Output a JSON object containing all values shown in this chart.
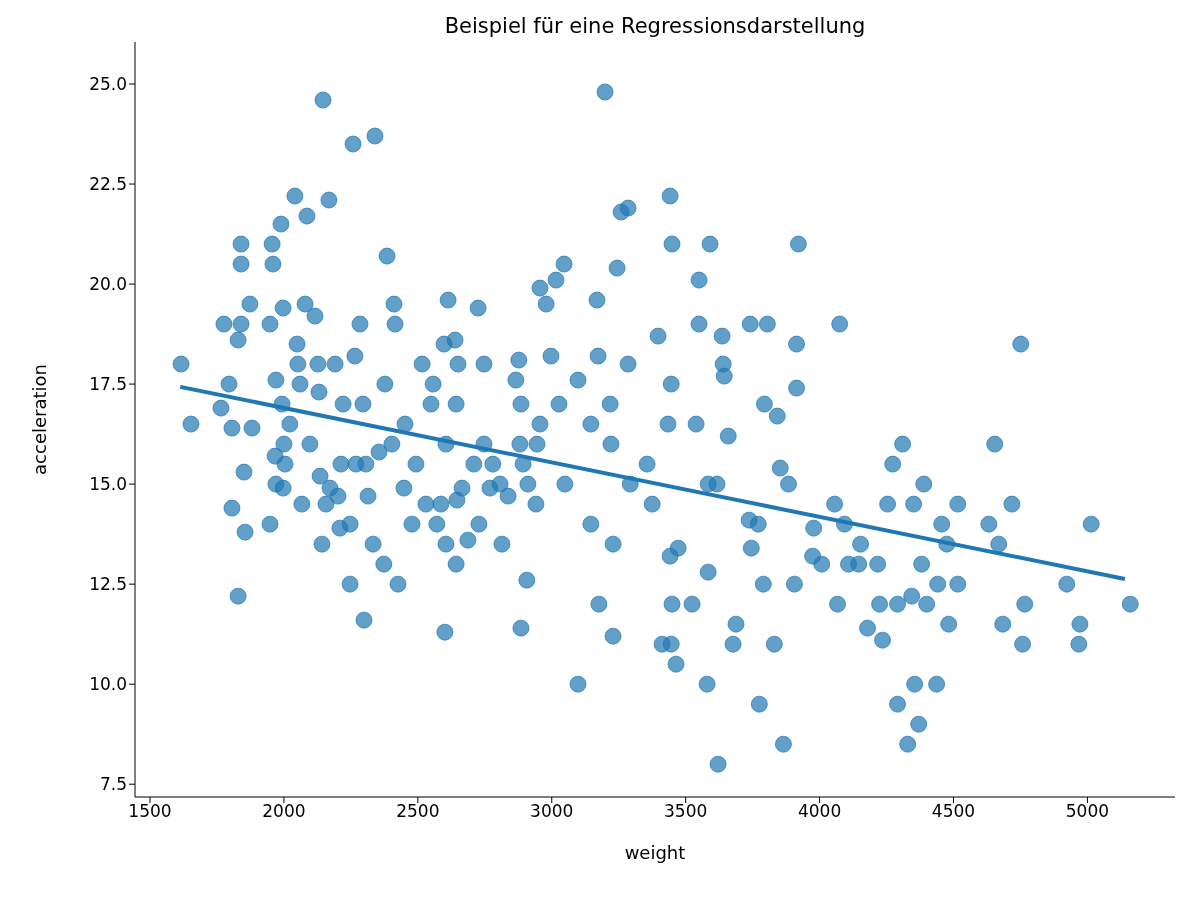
{
  "chart_data": {
    "type": "scatter",
    "title": "Beispiel für eine Regressionsdarstellung",
    "xlabel": "weight",
    "ylabel": "acceleration",
    "xlim": [
      1444,
      5327
    ],
    "ylim": [
      7.18,
      26.05
    ],
    "xticks": [
      1500,
      2000,
      2500,
      3000,
      3500,
      4000,
      4500,
      5000
    ],
    "yticks": [
      {
        "value": 7.5,
        "label": "7.5"
      },
      {
        "value": 10,
        "label": "10.0"
      },
      {
        "value": 12.5,
        "label": "12.5"
      },
      {
        "value": 15,
        "label": "15.0"
      },
      {
        "value": 17.5,
        "label": "17.5"
      },
      {
        "value": 20,
        "label": "20.0"
      },
      {
        "value": 22.5,
        "label": "22.5"
      },
      {
        "value": 25,
        "label": "25.0"
      }
    ],
    "grid": false,
    "marker": "circle",
    "series": [
      {
        "color": "#1f77b4",
        "x": [
          1616,
          1653,
          1776,
          1765,
          1795,
          1806,
          1806,
          1829,
          1840,
          1840,
          1840,
          1829,
          1851,
          1855,
          1873,
          1881,
          1956,
          1959,
          1948,
          1970,
          1967,
          1948,
          1989,
          1997,
          1993,
          2000,
          1997,
          2041,
          2049,
          2052,
          2067,
          2086,
          2079,
          2116,
          2127,
          2131,
          2146,
          2135,
          2142,
          2168,
          2191,
          2221,
          2213,
          2209,
          2247,
          2258,
          2265,
          2284,
          2295,
          2299,
          2340,
          2333,
          2385,
          2377,
          2411,
          2415,
          2403,
          2426,
          2373,
          2452,
          2478,
          2516,
          2549,
          2557,
          2598,
          2613,
          2605,
          2601,
          2605,
          2639,
          2650,
          2643,
          2665,
          2643,
          2725,
          2747,
          2747,
          2728,
          2769,
          2807,
          2814,
          2866,
          2877,
          2885,
          2881,
          2911,
          2907,
          2885,
          2956,
          2979,
          2956,
          2941,
          3016,
          3046,
          2997,
          3027,
          3049,
          3098,
          3098,
          3146,
          3169,
          3173,
          3199,
          3176,
          3146,
          3218,
          3221,
          3229,
          3244,
          3259,
          3285,
          3285,
          3293,
          3229,
          3356,
          3375,
          3397,
          3442,
          3449,
          3446,
          3434,
          3449,
          3446,
          3464,
          3472,
          3412,
          3442,
          3524,
          3539,
          3550,
          3550,
          3584,
          3591,
          3584,
          3580,
          3621,
          3617,
          3636,
          3640,
          3644,
          3659,
          3677,
          3688,
          3741,
          3737,
          3745,
          3771,
          3775,
          3790,
          3794,
          3805,
          3831,
          3842,
          3853,
          3865,
          3884,
          3906,
          3914,
          3914,
          3921,
          3974,
          3978,
          4008,
          4075,
          4067,
          4056,
          4093,
          4108,
          4146,
          4153,
          4179,
          4217,
          4224,
          4235,
          4254,
          4273,
          4291,
          4291,
          4310,
          4329,
          4344,
          4351,
          4355,
          4370,
          4381,
          4389,
          4400,
          4437,
          4441,
          4456,
          4475,
          4482,
          4516,
          4516,
          4632,
          4654,
          4669,
          4684,
          4718,
          4751,
          4758,
          4766,
          4923,
          4972,
          4968,
          5014,
          5160,
          2172,
          2157,
          2202,
          2247,
          2269,
          2306,
          2314,
          2355,
          2448,
          2493,
          2530,
          2571,
          2586,
          2646,
          2687,
          2709,
          2780,
          2837,
          2893,
          2945,
          2004,
          1970,
          2060,
          2022,
          2097
        ],
        "values": [
          18.0,
          16.5,
          19.0,
          16.9,
          17.5,
          16.4,
          14.4,
          12.2,
          21.0,
          20.5,
          19.0,
          18.6,
          15.3,
          13.8,
          19.5,
          16.4,
          21.0,
          20.5,
          19.0,
          17.6,
          15.7,
          14.0,
          21.5,
          19.4,
          17.0,
          16.0,
          14.9,
          22.2,
          18.5,
          18.0,
          14.5,
          21.7,
          19.5,
          19.2,
          18.0,
          17.3,
          24.6,
          15.2,
          13.5,
          22.1,
          18.0,
          17.0,
          15.5,
          13.9,
          12.5,
          23.5,
          18.2,
          19.0,
          17.0,
          11.6,
          23.7,
          13.5,
          20.7,
          17.5,
          19.5,
          19.0,
          16.0,
          12.5,
          13.0,
          16.5,
          14.0,
          18.0,
          17.0,
          17.5,
          18.5,
          19.6,
          16.0,
          11.3,
          13.5,
          18.6,
          18.0,
          17.0,
          14.9,
          13.0,
          19.4,
          18.0,
          16.0,
          14.0,
          14.9,
          15.0,
          13.5,
          17.6,
          18.1,
          17.0,
          16.0,
          15.0,
          12.6,
          11.4,
          19.9,
          19.5,
          16.5,
          14.5,
          20.1,
          20.5,
          18.2,
          17.0,
          15.0,
          10.0,
          17.6,
          16.5,
          19.6,
          18.2,
          24.8,
          12.0,
          14.0,
          17.0,
          16.0,
          11.2,
          20.4,
          21.8,
          21.9,
          18.0,
          15.0,
          13.5,
          15.5,
          14.5,
          18.7,
          22.2,
          21.0,
          17.5,
          16.5,
          12.0,
          11.0,
          10.5,
          13.4,
          11.0,
          13.2,
          12.0,
          16.5,
          20.1,
          19.0,
          15.0,
          21.0,
          12.8,
          10.0,
          8.0,
          15.0,
          18.7,
          18.0,
          17.7,
          16.2,
          11.0,
          11.5,
          19.0,
          14.1,
          13.4,
          14.0,
          9.5,
          12.5,
          17.0,
          19.0,
          11.0,
          16.7,
          15.4,
          8.5,
          15.0,
          12.5,
          18.5,
          17.4,
          21.0,
          13.2,
          13.9,
          13.0,
          19.0,
          12.0,
          14.5,
          14.0,
          13.0,
          13.0,
          13.5,
          11.4,
          13.0,
          12.0,
          11.1,
          14.5,
          15.5,
          9.5,
          12.0,
          16.0,
          8.5,
          12.2,
          14.5,
          10.0,
          9.0,
          13.0,
          15.0,
          12.0,
          10.0,
          12.5,
          14.0,
          13.5,
          11.5,
          12.5,
          14.5,
          14.0,
          16.0,
          13.5,
          11.5,
          14.5,
          18.5,
          11.0,
          12.0,
          12.5,
          11.5,
          11.0,
          14.0,
          12.0,
          14.9,
          14.5,
          14.7,
          14.0,
          15.5,
          15.5,
          14.7,
          15.8,
          14.9,
          15.5,
          14.5,
          14.0,
          14.5,
          14.6,
          13.6,
          15.5,
          15.5,
          14.7,
          15.5,
          16.0,
          15.5,
          15.0,
          17.5,
          16.5,
          16.0
        ]
      },
      {
        "type": "line",
        "marker": "none",
        "color": "#1f77b4",
        "x": [
          1613,
          5140
        ],
        "values": [
          17.43,
          12.63
        ]
      }
    ]
  }
}
